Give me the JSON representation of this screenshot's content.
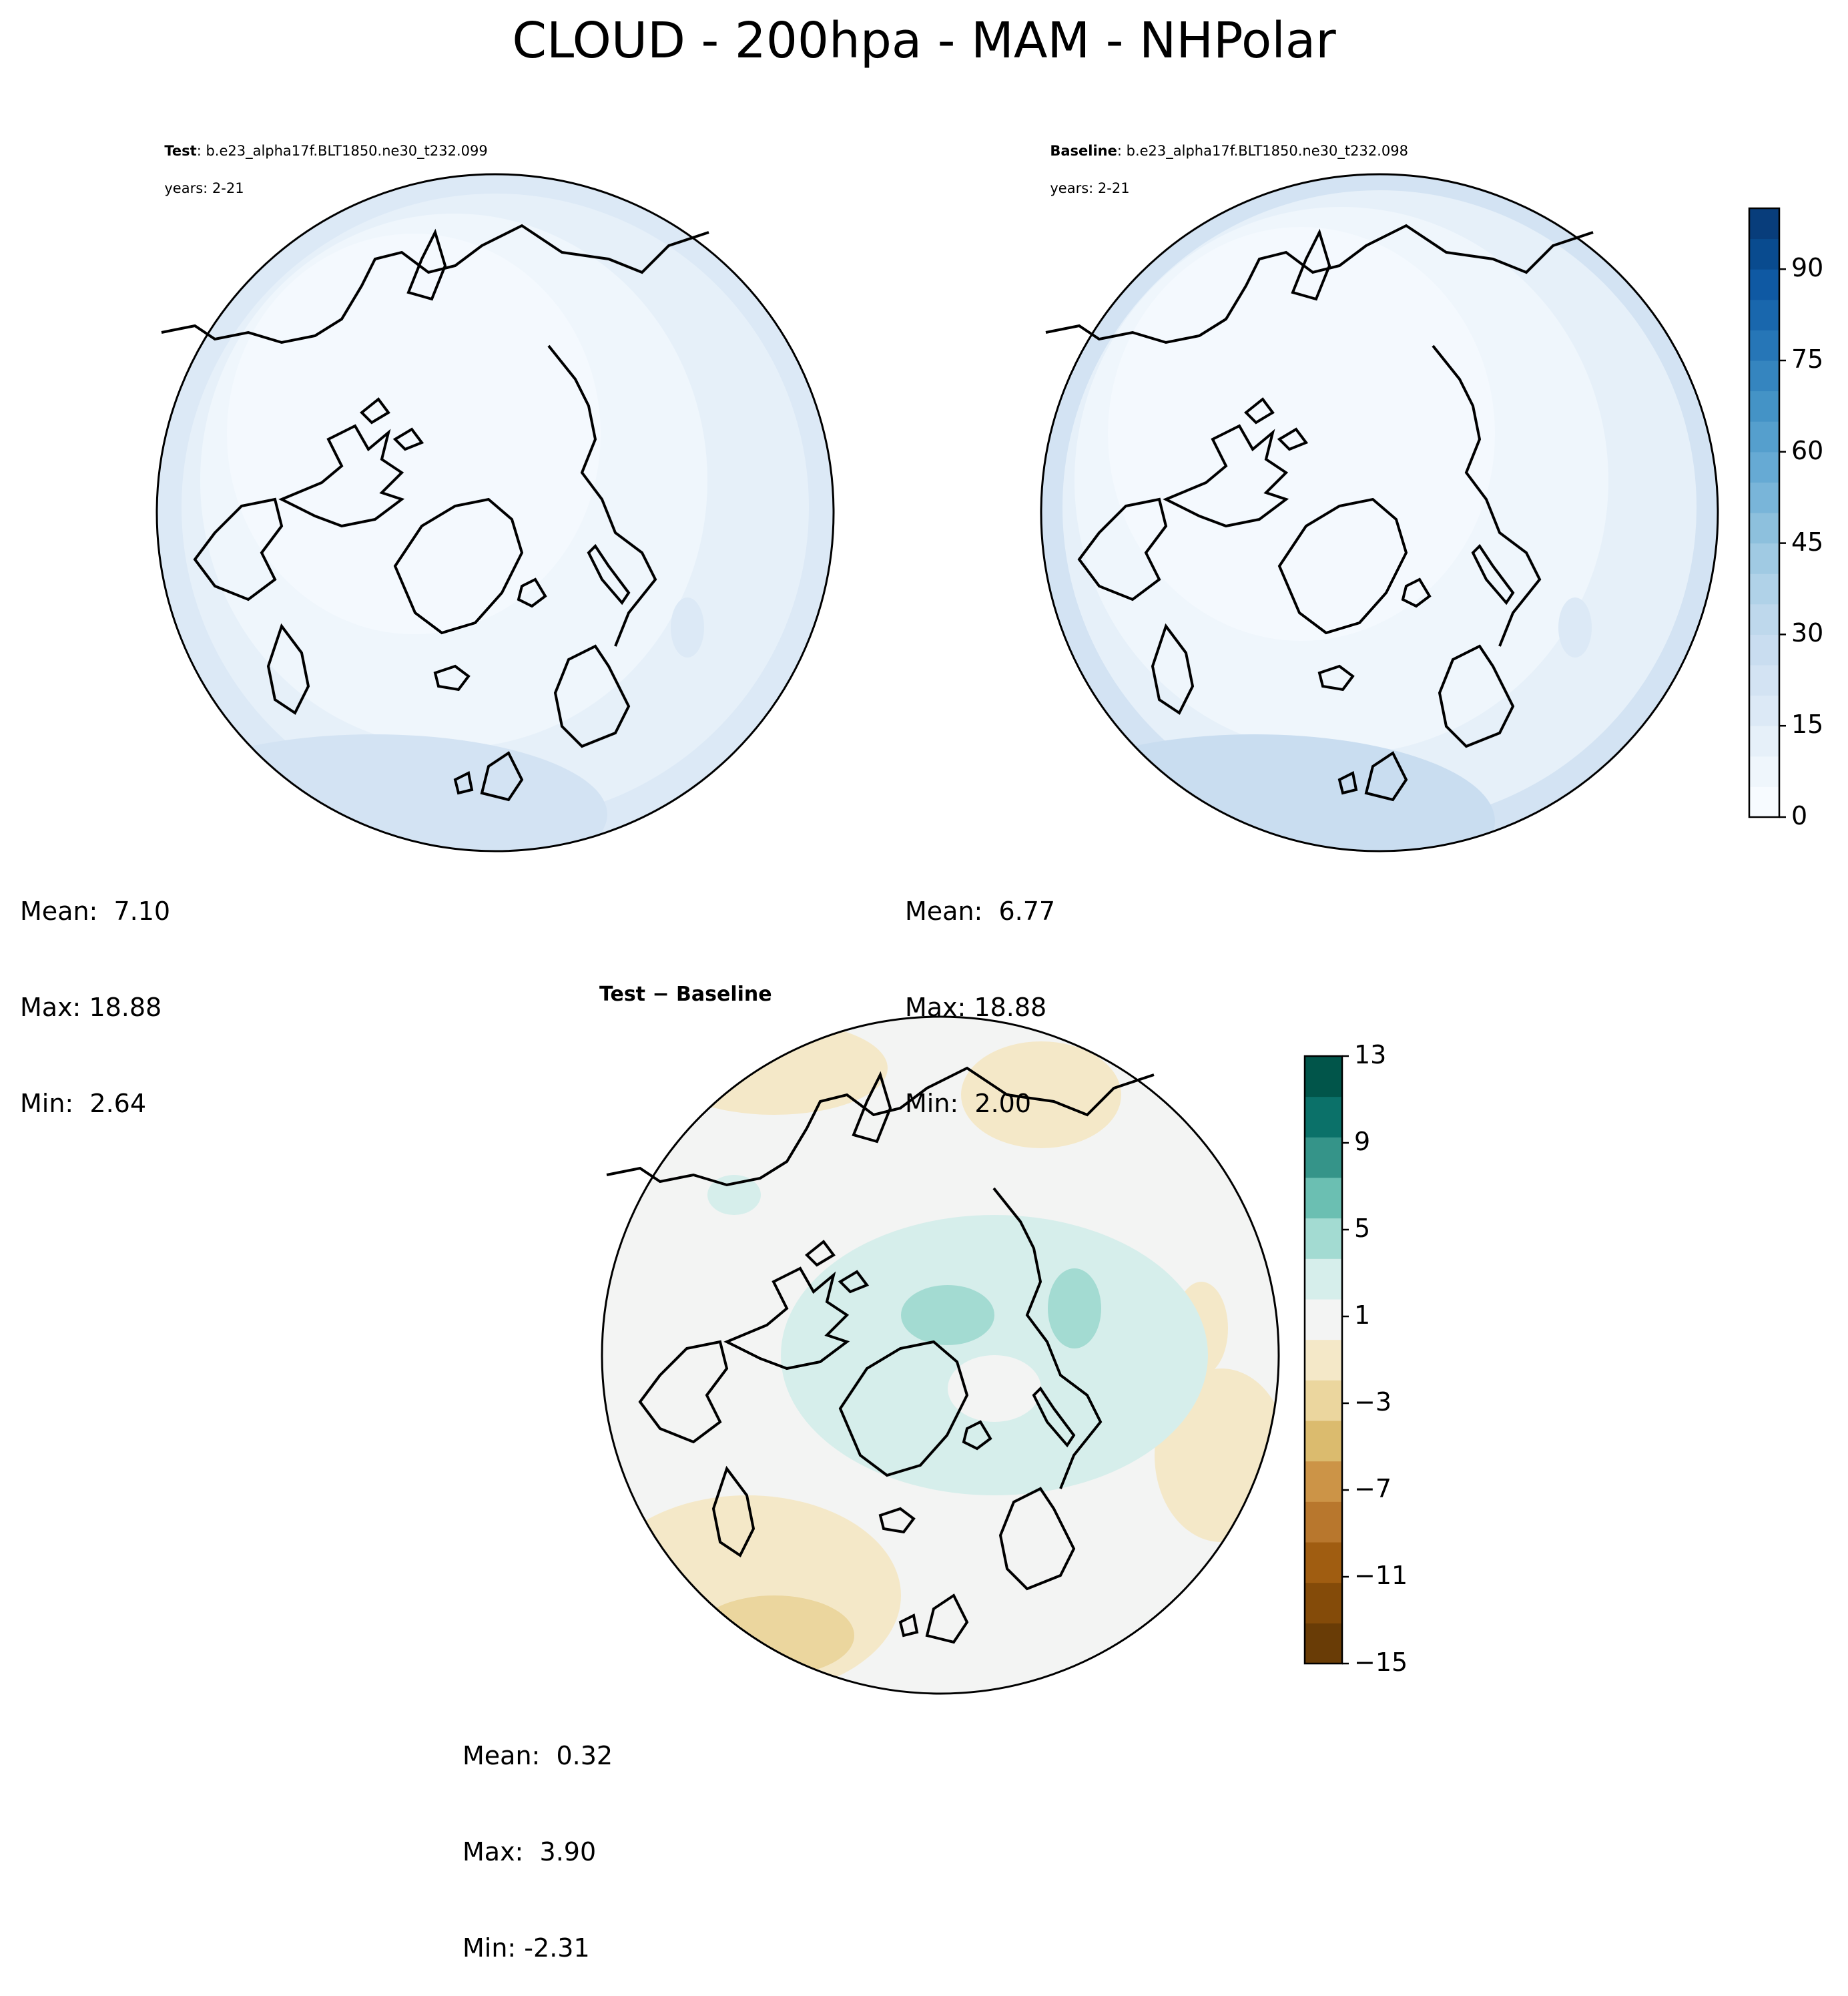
{
  "figure": {
    "title": "CLOUD - 200hpa - MAM - NHPolar"
  },
  "panels": {
    "test": {
      "label": "Test",
      "case": ": b.e23_alpha17f.BLT1850.ne30_t232.099",
      "years": "years: 2-21",
      "stats": {
        "mean": "Mean:  7.10",
        "max": "Max: 18.88",
        "min": "Min:  2.64"
      }
    },
    "baseline": {
      "label": "Baseline",
      "case": ": b.e23_alpha17f.BLT1850.ne30_t232.098",
      "years": "years: 2-21",
      "stats": {
        "mean": "Mean:  6.77",
        "max": "Max: 18.88",
        "min": "Min:  2.00"
      }
    },
    "diff": {
      "title": "Test − Baseline",
      "stats": {
        "mean": "Mean:  0.32",
        "max": "Max:  3.90",
        "min": "Min: -2.31"
      }
    }
  },
  "chart_data": [
    {
      "type": "heatmap",
      "name": "test",
      "projection": "north polar stereographic",
      "stats": {
        "mean": 7.1,
        "max": 18.88,
        "min": 2.64
      },
      "colormap": "Blues",
      "colorbar": {
        "min": 0,
        "max": 100,
        "levels": 20,
        "ticks": [
          "0",
          "15",
          "30",
          "45",
          "60",
          "75",
          "90"
        ]
      }
    },
    {
      "type": "heatmap",
      "name": "baseline",
      "projection": "north polar stereographic",
      "stats": {
        "mean": 6.77,
        "max": 18.88,
        "min": 2.0
      },
      "colormap": "Blues",
      "colorbar": {
        "min": 0,
        "max": 100,
        "levels": 20,
        "ticks": [
          "0",
          "15",
          "30",
          "45",
          "60",
          "75",
          "90"
        ]
      }
    },
    {
      "type": "heatmap",
      "name": "test-baseline",
      "projection": "north polar stereographic",
      "stats": {
        "mean": 0.32,
        "max": 3.9,
        "min": -2.31
      },
      "colormap": "BrBG",
      "colorbar": {
        "min": -15,
        "max": 13,
        "ticks": [
          "−15",
          "−11",
          "−7",
          "−3",
          "1",
          "5",
          "9",
          "13"
        ]
      }
    }
  ],
  "colors": {
    "blues": [
      "#f7fbff",
      "#eff6fc",
      "#e6f0f9",
      "#dce9f6",
      "#d3e3f3",
      "#c9ddf0",
      "#bed8ec",
      "#b0d2e8",
      "#a0cae3",
      "#8dc0dd",
      "#79b5d9",
      "#66aad4",
      "#559fcd",
      "#4493c6",
      "#3585bf",
      "#2676b7",
      "#1967ad",
      "#0f59a3",
      "#094b8f",
      "#083d7b"
    ],
    "brbg": [
      "#693c06",
      "#844b09",
      "#a05d11",
      "#b8772d",
      "#cc9447",
      "#dbbb6e",
      "#ebd69e",
      "#f4e8c8",
      "#f3f4f3",
      "#d6eeeb",
      "#a3dbd2",
      "#6bbfb2",
      "#359489",
      "#0b7169",
      "#01554a"
    ]
  }
}
